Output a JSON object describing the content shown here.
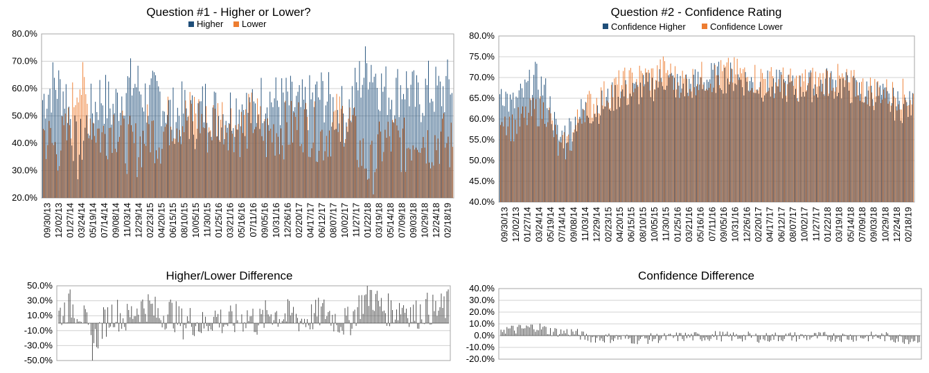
{
  "colors": {
    "higher": "#1F4E79",
    "lower": "#ED7D31",
    "diff": "#404040",
    "grid": "#D0D0D0",
    "axis": "#808080",
    "plot_border": "#A6A6A6"
  },
  "chart_data": [
    {
      "id": "q1",
      "type": "bar",
      "title": "Question #1 - Higher or Lower?",
      "legend": {
        "placement": "top-center",
        "entries": [
          "Higher",
          "Lower"
        ]
      },
      "ylim": [
        0.2,
        0.8
      ],
      "y_ticks": [
        "20.0%",
        "30.0%",
        "40.0%",
        "50.0%",
        "60.0%",
        "70.0%",
        "80.0%"
      ],
      "x_tick_labels": [
        "09/30/13",
        "12/02/13",
        "01/27/14",
        "03/24/14",
        "05/19/14",
        "07/14/14",
        "09/08/14",
        "11/03/14",
        "12/29/14",
        "02/23/15",
        "04/20/15",
        "06/15/15",
        "08/10/15",
        "10/05/15",
        "11/30/15",
        "01/25/16",
        "03/21/16",
        "05/16/16",
        "07/11/16",
        "09/05/16",
        "10/31/16",
        "12/26/16",
        "02/20/17",
        "04/17/17",
        "06/12/17",
        "08/07/17",
        "10/02/17",
        "11/27/17",
        "01/22/18",
        "03/19/18",
        "05/14/18",
        "07/09/18",
        "09/03/18",
        "10/29/18",
        "12/24/18",
        "02/18/19"
      ],
      "n_weeks": 280,
      "series_note": "weekly values, two series (Higher / Lower) summing to 1.0; values listed per x_tick_labels date (sampled every 8 weeks)",
      "series": [
        {
          "name": "Higher",
          "sampled_values": [
            0.56,
            0.62,
            0.58,
            0.35,
            0.5,
            0.58,
            0.52,
            0.6,
            0.62,
            0.55,
            0.58,
            0.5,
            0.52,
            0.48,
            0.55,
            0.5,
            0.52,
            0.55,
            0.5,
            0.58,
            0.55,
            0.55,
            0.52,
            0.55,
            0.58,
            0.52,
            0.5,
            0.62,
            0.7,
            0.6,
            0.58,
            0.62,
            0.55,
            0.6,
            0.58,
            0.62
          ]
        },
        {
          "name": "Lower",
          "sampled_values": [
            0.44,
            0.38,
            0.42,
            0.65,
            0.5,
            0.42,
            0.48,
            0.4,
            0.38,
            0.45,
            0.42,
            0.5,
            0.48,
            0.52,
            0.45,
            0.5,
            0.48,
            0.45,
            0.5,
            0.42,
            0.45,
            0.45,
            0.48,
            0.45,
            0.42,
            0.48,
            0.5,
            0.38,
            0.3,
            0.4,
            0.42,
            0.38,
            0.45,
            0.4,
            0.42,
            0.38
          ]
        }
      ]
    },
    {
      "id": "q2",
      "type": "bar",
      "title": "Question #2 - Confidence Rating",
      "legend": {
        "placement": "top-center",
        "entries": [
          "Confidence Higher",
          "Confidence Lower"
        ]
      },
      "ylim": [
        0.4,
        0.8
      ],
      "y_ticks": [
        "40.0%",
        "45.0%",
        "50.0%",
        "55.0%",
        "60.0%",
        "65.0%",
        "70.0%",
        "75.0%",
        "80.0%"
      ],
      "x_tick_labels": [
        "09/30/13",
        "12/02/13",
        "01/27/14",
        "03/24/14",
        "05/19/14",
        "07/14/14",
        "09/08/14",
        "11/03/14",
        "12/29/14",
        "02/23/15",
        "04/20/15",
        "06/15/15",
        "08/10/15",
        "10/05/15",
        "11/30/15",
        "01/25/16",
        "03/21/16",
        "05/16/16",
        "07/11/16",
        "09/05/16",
        "10/31/16",
        "12/26/16",
        "02/20/17",
        "04/17/17",
        "06/12/17",
        "08/07/17",
        "10/02/17",
        "11/27/17",
        "01/22/18",
        "03/19/18",
        "05/14/18",
        "07/09/18",
        "09/03/18",
        "10/29/18",
        "12/24/18",
        "02/18/19"
      ],
      "n_weeks": 280,
      "series": [
        {
          "name": "Confidence Higher",
          "sampled_values": [
            0.68,
            0.63,
            0.66,
            0.7,
            0.66,
            0.55,
            0.58,
            0.62,
            0.62,
            0.64,
            0.66,
            0.66,
            0.67,
            0.68,
            0.7,
            0.68,
            0.68,
            0.69,
            0.7,
            0.7,
            0.7,
            0.69,
            0.68,
            0.68,
            0.68,
            0.67,
            0.68,
            0.68,
            0.69,
            0.68,
            0.67,
            0.66,
            0.66,
            0.64,
            0.63,
            0.63
          ]
        },
        {
          "name": "Confidence Lower",
          "sampled_values": [
            0.62,
            0.58,
            0.6,
            0.62,
            0.62,
            0.52,
            0.55,
            0.63,
            0.64,
            0.66,
            0.68,
            0.69,
            0.7,
            0.7,
            0.72,
            0.69,
            0.69,
            0.7,
            0.7,
            0.71,
            0.71,
            0.7,
            0.7,
            0.69,
            0.69,
            0.68,
            0.69,
            0.69,
            0.7,
            0.69,
            0.68,
            0.67,
            0.67,
            0.66,
            0.66,
            0.65
          ]
        }
      ]
    },
    {
      "id": "q1diff",
      "type": "bar",
      "title": "Higher/Lower Difference",
      "ylim": [
        -0.5,
        0.5
      ],
      "y_ticks": [
        "-50.0%",
        "-30.0%",
        "-10.0%",
        "10.0%",
        "30.0%",
        "50.0%"
      ],
      "n_weeks": 280,
      "series": [
        {
          "name": "",
          "sampled_values": [
            0.12,
            0.24,
            0.16,
            -0.3,
            0.0,
            0.16,
            0.04,
            0.2,
            0.24,
            0.1,
            0.16,
            0.0,
            0.04,
            -0.04,
            0.1,
            0.0,
            0.04,
            0.1,
            0.0,
            0.16,
            0.1,
            0.1,
            0.04,
            0.1,
            0.16,
            0.04,
            0.0,
            0.24,
            0.4,
            0.2,
            0.16,
            0.24,
            0.1,
            0.2,
            0.16,
            0.24
          ]
        }
      ]
    },
    {
      "id": "q2diff",
      "type": "bar",
      "title": "Confidence Difference",
      "ylim": [
        -0.2,
        0.4
      ],
      "y_ticks": [
        "-20.0%",
        "-10.0%",
        "0.0%",
        "10.0%",
        "20.0%",
        "30.0%",
        "40.0%"
      ],
      "n_weeks": 280,
      "series": [
        {
          "name": "",
          "sampled_values": [
            0.06,
            0.05,
            0.06,
            0.08,
            0.04,
            0.03,
            0.03,
            -0.01,
            -0.02,
            -0.02,
            -0.02,
            -0.03,
            -0.03,
            -0.02,
            -0.02,
            -0.01,
            -0.01,
            -0.01,
            0.0,
            -0.01,
            -0.01,
            -0.01,
            -0.02,
            -0.01,
            -0.01,
            -0.01,
            -0.01,
            -0.01,
            -0.01,
            -0.01,
            -0.01,
            -0.01,
            -0.01,
            -0.02,
            -0.03,
            -0.02
          ]
        }
      ]
    }
  ]
}
